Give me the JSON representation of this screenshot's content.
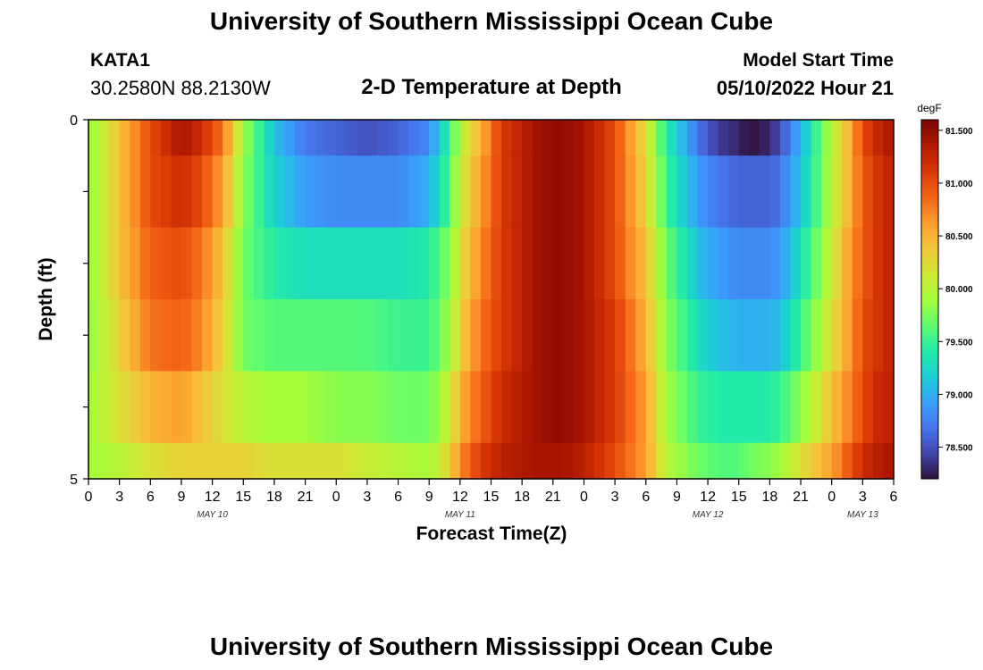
{
  "header": {
    "title": "University of Southern Mississippi Ocean Cube",
    "station": "KATA1",
    "coords": "30.2580N  88.2130W",
    "subtitle": "2-D Temperature at Depth",
    "start_label": "Model Start Time",
    "start_value": "05/10/2022 Hour 21",
    "footer_title": "University of Southern Mississippi Ocean Cube"
  },
  "chart_data": {
    "type": "heatmap",
    "title": "2-D Temperature at Depth",
    "xlabel": "Forecast Time(Z)",
    "ylabel": "Depth (ft)",
    "units": "degF",
    "x_tick_labels": [
      "0",
      "3",
      "6",
      "9",
      "12",
      "15",
      "18",
      "21",
      "0",
      "3",
      "6",
      "9",
      "12",
      "15",
      "18",
      "21",
      "0",
      "3",
      "6",
      "9",
      "12",
      "15",
      "18",
      "21",
      "0",
      "3",
      "6"
    ],
    "date_labels": [
      {
        "label": "MAY 10",
        "tick_index": 4
      },
      {
        "label": "MAY 11",
        "tick_index": 12
      },
      {
        "label": "MAY 12",
        "tick_index": 20
      },
      {
        "label": "MAY 13",
        "tick_index": 25
      }
    ],
    "xlim_hours": [
      0,
      78
    ],
    "depth_tick_labels": [
      "0",
      "5"
    ],
    "depth_range_ft": [
      0,
      5
    ],
    "depth_levels": 5,
    "colorbar": {
      "label": "degF",
      "range": [
        78.2,
        81.6
      ],
      "ticks": [
        "78.500",
        "79.000",
        "79.500",
        "80.000",
        "80.500",
        "81.000",
        "81.500"
      ],
      "tick_values": [
        78.5,
        79.0,
        79.5,
        80.0,
        80.5,
        81.0,
        81.5
      ],
      "colors": [
        "#30123b",
        "#4145ab",
        "#4675ed",
        "#39a2fc",
        "#1bcfd4",
        "#24eca6",
        "#61fc6c",
        "#a4fc3b",
        "#d1e834",
        "#f3c63a",
        "#fe9b2d",
        "#f36315",
        "#d93806",
        "#b11901",
        "#7a0402"
      ]
    },
    "rows": [
      {
        "depth": "0.0-0.5 ft",
        "hours": [
          0,
          3,
          6,
          9,
          11,
          13,
          15,
          18,
          21,
          24,
          27,
          30,
          33,
          35,
          36,
          38,
          40,
          43,
          45,
          46,
          48,
          51,
          54,
          56,
          59,
          61,
          63,
          64,
          66,
          67,
          69,
          72,
          74,
          75,
          76,
          78
        ],
        "temps": [
          79.8,
          80.4,
          81.0,
          81.4,
          81.2,
          80.8,
          79.9,
          79.1,
          78.7,
          78.6,
          78.5,
          78.6,
          78.8,
          79.5,
          80.0,
          80.5,
          81.1,
          81.4,
          81.5,
          81.5,
          81.4,
          81.0,
          80.2,
          79.4,
          78.7,
          78.4,
          78.3,
          78.2,
          78.3,
          78.5,
          79.0,
          80.0,
          80.6,
          81.0,
          81.2,
          81.4
        ]
      },
      {
        "depth": "0.5-1.5 ft",
        "hours": [
          0,
          3,
          6,
          9,
          11,
          13,
          15,
          18,
          21,
          24,
          27,
          30,
          33,
          35,
          36,
          38,
          40,
          43,
          45,
          46,
          48,
          51,
          54,
          56,
          59,
          61,
          63,
          64,
          66,
          67,
          69,
          72,
          74,
          75,
          76,
          78
        ],
        "temps": [
          79.8,
          80.4,
          81.0,
          81.2,
          81.0,
          80.6,
          79.8,
          79.2,
          78.9,
          78.8,
          78.8,
          78.8,
          79.0,
          79.6,
          80.1,
          80.6,
          81.1,
          81.4,
          81.5,
          81.5,
          81.4,
          81.0,
          80.3,
          79.5,
          78.9,
          78.7,
          78.6,
          78.6,
          78.6,
          78.7,
          79.1,
          80.0,
          80.6,
          80.9,
          81.1,
          81.3
        ]
      },
      {
        "depth": "1.5-2.5 ft",
        "hours": [
          0,
          3,
          6,
          9,
          11,
          13,
          15,
          18,
          21,
          24,
          27,
          30,
          33,
          35,
          36,
          38,
          40,
          43,
          45,
          46,
          48,
          51,
          54,
          56,
          59,
          61,
          63,
          64,
          66,
          67,
          69,
          72,
          74,
          75,
          76,
          78
        ],
        "temps": [
          79.8,
          80.4,
          80.9,
          81.0,
          80.8,
          80.4,
          79.7,
          79.4,
          79.3,
          79.3,
          79.3,
          79.3,
          79.4,
          79.8,
          80.2,
          80.7,
          81.1,
          81.4,
          81.5,
          81.5,
          81.4,
          81.0,
          80.4,
          79.7,
          79.1,
          78.9,
          78.8,
          78.8,
          78.8,
          78.9,
          79.3,
          80.1,
          80.7,
          80.9,
          81.1,
          81.3
        ]
      },
      {
        "depth": "2.5-3.5 ft",
        "hours": [
          0,
          3,
          6,
          9,
          11,
          13,
          15,
          18,
          21,
          24,
          27,
          30,
          33,
          35,
          36,
          38,
          40,
          43,
          45,
          46,
          48,
          51,
          54,
          56,
          59,
          61,
          63,
          64,
          66,
          67,
          69,
          72,
          74,
          75,
          76,
          78
        ],
        "temps": [
          79.8,
          80.3,
          80.8,
          80.9,
          80.7,
          80.3,
          79.7,
          79.6,
          79.6,
          79.6,
          79.6,
          79.5,
          79.5,
          79.9,
          80.3,
          80.8,
          81.1,
          81.4,
          81.5,
          81.5,
          81.4,
          81.1,
          80.5,
          79.8,
          79.3,
          79.1,
          79.0,
          79.0,
          79.0,
          79.1,
          79.5,
          80.2,
          80.7,
          81.0,
          81.1,
          81.3
        ]
      },
      {
        "depth": "3.5-4.5 ft",
        "hours": [
          0,
          3,
          6,
          9,
          11,
          13,
          15,
          18,
          21,
          24,
          27,
          30,
          33,
          35,
          36,
          38,
          40,
          43,
          45,
          46,
          48,
          51,
          54,
          56,
          59,
          61,
          63,
          64,
          66,
          67,
          69,
          72,
          74,
          75,
          76,
          78
        ],
        "temps": [
          79.9,
          80.2,
          80.5,
          80.6,
          80.4,
          80.2,
          80.0,
          79.9,
          79.9,
          79.8,
          79.8,
          79.7,
          79.7,
          80.1,
          80.5,
          80.9,
          81.2,
          81.4,
          81.5,
          81.5,
          81.4,
          81.1,
          80.6,
          79.9,
          79.5,
          79.4,
          79.4,
          79.4,
          79.4,
          79.5,
          79.8,
          80.4,
          80.8,
          81.0,
          81.2,
          81.3
        ]
      },
      {
        "depth": "4.5-5.0 ft",
        "hours": [
          0,
          3,
          6,
          9,
          11,
          13,
          15,
          18,
          21,
          24,
          27,
          30,
          33,
          35,
          36,
          38,
          40,
          43,
          45,
          46,
          48,
          51,
          54,
          56,
          59,
          61,
          63,
          64,
          66,
          67,
          69,
          72,
          74,
          75,
          76,
          78
        ],
        "temps": [
          79.9,
          80.0,
          80.2,
          80.3,
          80.3,
          80.3,
          80.3,
          80.2,
          80.2,
          80.2,
          80.1,
          80.0,
          79.9,
          80.3,
          80.7,
          81.1,
          81.3,
          81.4,
          81.4,
          81.4,
          81.3,
          81.0,
          80.6,
          80.0,
          79.7,
          79.6,
          79.6,
          79.7,
          79.8,
          79.9,
          80.2,
          80.6,
          81.0,
          81.2,
          81.3,
          81.4
        ]
      }
    ]
  }
}
